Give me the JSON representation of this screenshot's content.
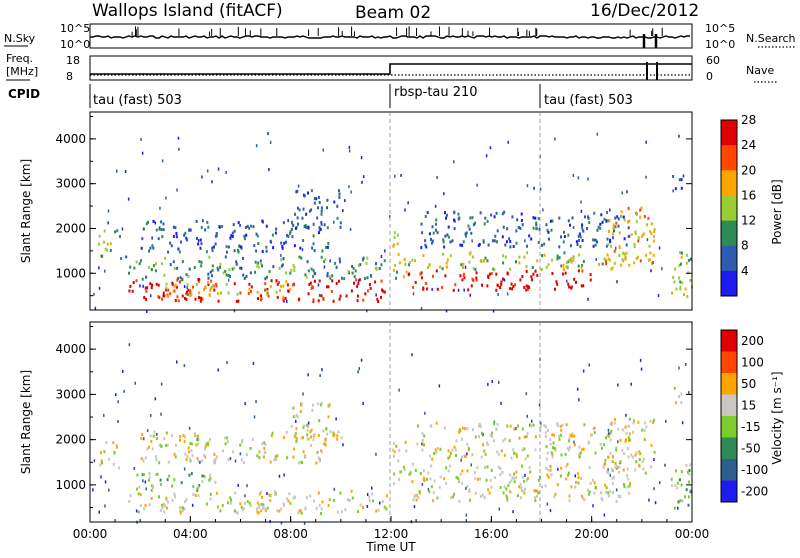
{
  "header": {
    "site": "Wallops Island (fitACF)",
    "beam": "Beam 02",
    "date": "16/Dec/2012"
  },
  "noise_panel": {
    "left_label": "N.Sky",
    "right_label": "N.Search",
    "left_ticks": [
      "10^5",
      "10^0"
    ],
    "right_ticks": [
      "10^5",
      "10^0"
    ]
  },
  "freq_panel": {
    "left_label_1": "Freq.",
    "left_label_2": "[MHz]",
    "right_label": "Nave",
    "left_ticks": [
      "18",
      "8"
    ],
    "right_ticks": [
      "60",
      "0"
    ]
  },
  "cpid": {
    "label": "CPID",
    "segments": [
      {
        "start_hour": 0,
        "end_hour": 12,
        "name": "tau (fast) 503"
      },
      {
        "start_hour": 12,
        "end_hour": 18,
        "name": "rbsp-tau 210"
      },
      {
        "start_hour": 18,
        "end_hour": 24,
        "name": "tau (fast) 503"
      }
    ]
  },
  "x_axis": {
    "label": "Time UT",
    "ticks": [
      "00:00",
      "04:00",
      "08:00",
      "12:00",
      "16:00",
      "20:00",
      "00:00"
    ]
  },
  "chart_data": [
    {
      "type": "heatmap",
      "panel": "power",
      "ylabel": "Slant Range [km]",
      "ylim": [
        180,
        4600
      ],
      "xlim": [
        0,
        24
      ],
      "yticks": [
        "1000",
        "2000",
        "3000",
        "4000"
      ],
      "colorbar_label": "Power [dB]",
      "colorbar_ticks": [
        "4",
        "8",
        "12",
        "16",
        "20",
        "24",
        "28"
      ],
      "colors": [
        "#1d1df2",
        "#2d5cb0",
        "#2e8b57",
        "#9acd32",
        "#ffa500",
        "#ff4500",
        "#e00000"
      ],
      "echo_regions": [
        {
          "t0": 0.3,
          "t1": 1.2,
          "r0": 1400,
          "r1": 2000,
          "level": 3
        },
        {
          "t0": 1.5,
          "t1": 11.8,
          "r0": 400,
          "r1": 900,
          "level": 6
        },
        {
          "t0": 3.0,
          "t1": 8.0,
          "r0": 500,
          "r1": 850,
          "level": 4
        },
        {
          "t0": 1.2,
          "t1": 11.8,
          "r0": 900,
          "r1": 1400,
          "level": 2
        },
        {
          "t0": 2.0,
          "t1": 9.5,
          "r0": 1500,
          "r1": 2200,
          "level": 1
        },
        {
          "t0": 8.0,
          "t1": 10.0,
          "r0": 2000,
          "r1": 2900,
          "level": 1
        },
        {
          "t0": 12.0,
          "t1": 12.6,
          "r0": 900,
          "r1": 2000,
          "level": 3
        },
        {
          "t0": 12.6,
          "t1": 20.0,
          "r0": 650,
          "r1": 1100,
          "level": 6
        },
        {
          "t0": 12.6,
          "t1": 21.5,
          "r0": 1100,
          "r1": 1500,
          "level": 3
        },
        {
          "t0": 13.0,
          "t1": 21.5,
          "r0": 1600,
          "r1": 2400,
          "level": 1
        },
        {
          "t0": 20.5,
          "t1": 22.5,
          "r0": 1200,
          "r1": 2500,
          "level": 4
        },
        {
          "t0": 23.0,
          "t1": 24.0,
          "r0": 500,
          "r1": 1500,
          "level": 3
        },
        {
          "t0": 23.2,
          "t1": 23.6,
          "r0": 2700,
          "r1": 3200,
          "level": 1
        }
      ]
    },
    {
      "type": "heatmap",
      "panel": "velocity",
      "ylabel": "Slant Range [km]",
      "ylim": [
        180,
        4600
      ],
      "xlim": [
        0,
        24
      ],
      "yticks": [
        "1000",
        "2000",
        "3000",
        "4000"
      ],
      "colorbar_label": "Velocity [m s⁻¹]",
      "colorbar_ticks": [
        "200",
        "100",
        "50",
        "15",
        "-15",
        "-50",
        "-100",
        "-200"
      ],
      "colors": [
        "#1d1df2",
        "#2e5e8c",
        "#2e8b57",
        "#7ccd2c",
        "#c8c8c0",
        "#ffa500",
        "#ff4500",
        "#e00000"
      ],
      "echo_regions": [
        {
          "t0": 0.3,
          "t1": 1.2,
          "r0": 1400,
          "r1": 2000,
          "level": 4
        },
        {
          "t0": 1.5,
          "t1": 11.8,
          "r0": 400,
          "r1": 900,
          "level": 4
        },
        {
          "t0": 1.5,
          "t1": 5.0,
          "r0": 900,
          "r1": 1300,
          "level": 3
        },
        {
          "t0": 6.5,
          "t1": 7.0,
          "r0": 450,
          "r1": 800,
          "level": 5
        },
        {
          "t0": 2.0,
          "t1": 9.5,
          "r0": 1500,
          "r1": 2200,
          "level": 4
        },
        {
          "t0": 8.0,
          "t1": 10.0,
          "r0": 2000,
          "r1": 2900,
          "level": 4
        },
        {
          "t0": 12.0,
          "t1": 12.6,
          "r0": 900,
          "r1": 2000,
          "level": 4
        },
        {
          "t0": 12.6,
          "t1": 21.5,
          "r0": 650,
          "r1": 1500,
          "level": 4
        },
        {
          "t0": 13.0,
          "t1": 21.5,
          "r0": 1600,
          "r1": 2400,
          "level": 4
        },
        {
          "t0": 20.5,
          "t1": 22.5,
          "r0": 1200,
          "r1": 2500,
          "level": 4
        },
        {
          "t0": 23.0,
          "t1": 24.0,
          "r0": 500,
          "r1": 1500,
          "level": 3
        },
        {
          "t0": 23.2,
          "t1": 23.6,
          "r0": 2700,
          "r1": 3200,
          "level": 4
        }
      ]
    }
  ]
}
